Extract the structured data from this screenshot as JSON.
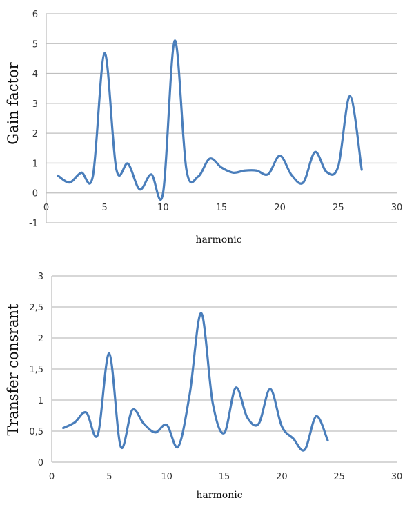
{
  "chart_data": [
    {
      "type": "line",
      "title": "",
      "xlabel": "harmonic",
      "ylabel": "Gain factor",
      "xlim": [
        0,
        30
      ],
      "ylim": [
        -1,
        6
      ],
      "xticks": [
        "0",
        "5",
        "10",
        "15",
        "20",
        "25",
        "30"
      ],
      "yticks": [
        "-1",
        "0",
        "1",
        "2",
        "3",
        "4",
        "5",
        "6"
      ],
      "grid": true,
      "smooth": true,
      "color": "#4a7ebb",
      "x": [
        1,
        2,
        3,
        4,
        5,
        6,
        7,
        8,
        9,
        10,
        11,
        12,
        13,
        14,
        15,
        16,
        17,
        18,
        19,
        20,
        21,
        22,
        23,
        24,
        25,
        26,
        27
      ],
      "series": [
        {
          "name": "Gain factor",
          "values": [
            0.58,
            0.35,
            0.68,
            0.58,
            4.68,
            0.8,
            0.98,
            0.12,
            0.62,
            0.0,
            5.1,
            0.78,
            0.55,
            1.15,
            0.85,
            0.68,
            0.75,
            0.75,
            0.63,
            1.25,
            0.6,
            0.35,
            1.37,
            0.7,
            0.9,
            3.25,
            0.78
          ]
        }
      ]
    },
    {
      "type": "line",
      "title": "",
      "xlabel": "harmonic",
      "ylabel": "Transfer consrant",
      "xlim": [
        0,
        30
      ],
      "ylim": [
        0,
        3
      ],
      "xticks": [
        "0",
        "5",
        "10",
        "15",
        "20",
        "25",
        "30"
      ],
      "yticks": [
        "0",
        "0,5",
        "1",
        "1,5",
        "2",
        "2,5",
        "3"
      ],
      "grid": true,
      "smooth": true,
      "color": "#4a7ebb",
      "x": [
        1,
        2,
        3,
        4,
        5,
        6,
        7,
        8,
        9,
        10,
        11,
        12,
        13,
        14,
        15,
        16,
        17,
        18,
        19,
        20,
        21,
        22,
        23,
        24
      ],
      "series": [
        {
          "name": "Transfer consrant",
          "values": [
            0.55,
            0.64,
            0.8,
            0.44,
            1.75,
            0.25,
            0.84,
            0.62,
            0.48,
            0.6,
            0.25,
            1.1,
            2.4,
            0.95,
            0.47,
            1.2,
            0.72,
            0.62,
            1.18,
            0.58,
            0.38,
            0.2,
            0.74,
            0.35
          ]
        }
      ]
    }
  ]
}
